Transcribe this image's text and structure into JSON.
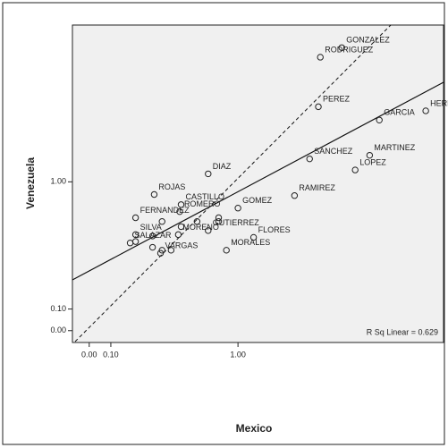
{
  "chart_data": {
    "type": "scatter",
    "xlabel": "Mexico",
    "ylabel": "Venezuela",
    "annotation": "R Sq Linear = 0.629",
    "x": [
      2.37,
      2.02,
      1.99,
      4.21,
      3.09,
      2.89,
      1.86,
      2.61,
      0.73,
      0.34,
      1.65,
      1.0,
      0.52,
      0.51,
      0.23,
      0.39,
      0.64,
      0.82,
      0.82,
      0.52,
      0.73,
      0.33,
      0.39,
      0.45,
      0.33,
      1.16,
      0.89,
      0.23,
      0.2,
      0.23,
      0.5,
      0.38
    ],
    "values": [
      2.94,
      2.75,
      1.91,
      1.85,
      1.72,
      1.28,
      1.24,
      1.12,
      1.08,
      0.88,
      0.87,
      0.76,
      0.79,
      0.73,
      0.68,
      0.65,
      0.65,
      0.68,
      0.65,
      0.61,
      0.58,
      0.54,
      0.44,
      0.44,
      0.46,
      0.53,
      0.44,
      0.55,
      0.49,
      0.5,
      0.55,
      0.42
    ],
    "labels": [
      "GONZALEZ",
      "RODRIGUEZ",
      "PEREZ",
      "HERNANDEZ",
      "GARCIA",
      "MARTINEZ",
      "SANCHEZ",
      "LOPEZ",
      "DIAZ",
      "ROJAS",
      "RAMIREZ",
      "GOMEZ",
      "CASTILLO",
      "ROMERO",
      "FERNANDEZ",
      null,
      null,
      null,
      null,
      null,
      "GUTIERREZ",
      null,
      null,
      null,
      null,
      "FLORES",
      "MORALES",
      "SILVA",
      "SALAZAR",
      null,
      "MORENO",
      "VARGAS"
    ],
    "color": "#222222",
    "xlim": [
      -0.07,
      4.72
    ],
    "ylim": [
      -0.05,
      3.43
    ],
    "xticks": [
      {
        "value": 0,
        "label": "0.00"
      },
      {
        "value": 0.1,
        "label": "0.10"
      },
      {
        "value": 1,
        "label": "1.00"
      }
    ],
    "yticks": [
      {
        "value": 0,
        "label": "0.00"
      },
      {
        "value": 0.1,
        "label": "0.10"
      },
      {
        "value": 1,
        "label": "1.00"
      }
    ]
  }
}
